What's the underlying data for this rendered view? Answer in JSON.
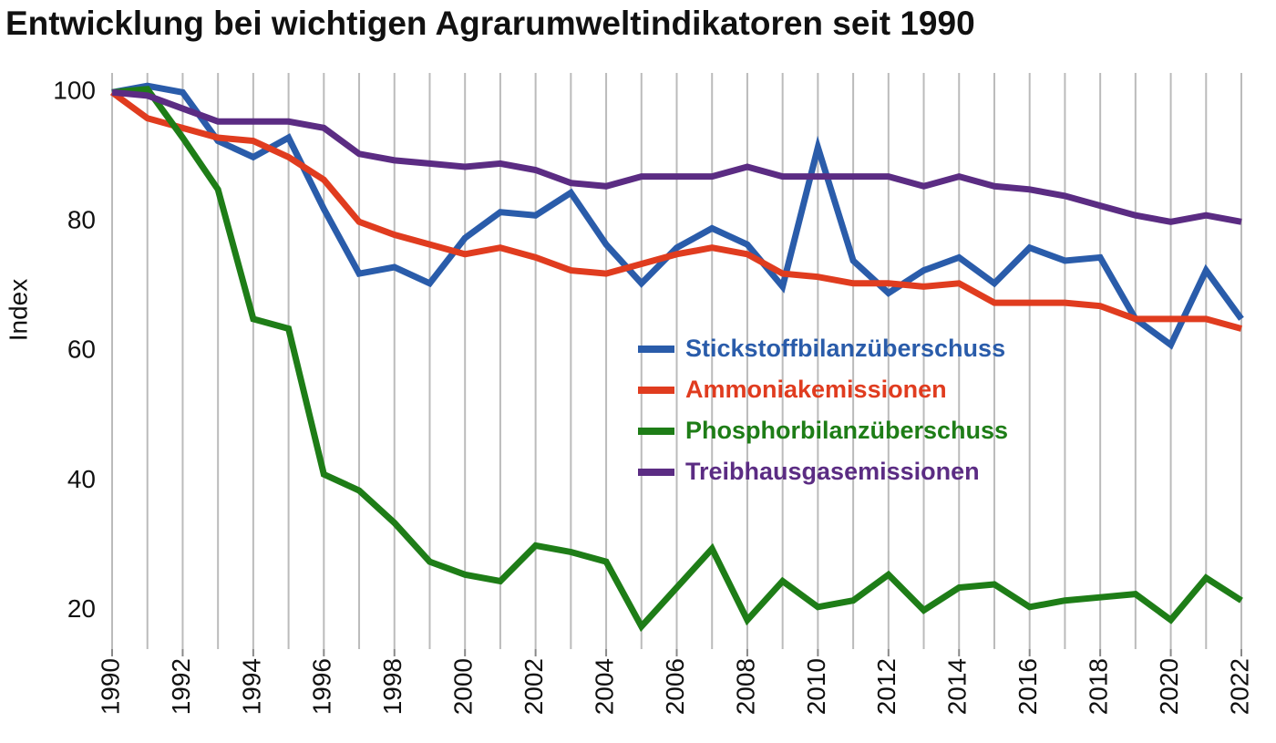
{
  "chart_data": {
    "type": "line",
    "title": "Entwicklung bei wichtigen Agrarumweltindikatoren seit 1990",
    "y_label": "Index",
    "x": [
      1990,
      1991,
      1992,
      1993,
      1994,
      1995,
      1996,
      1997,
      1998,
      1999,
      2000,
      2001,
      2002,
      2003,
      2004,
      2005,
      2006,
      2007,
      2008,
      2009,
      2010,
      2011,
      2012,
      2013,
      2014,
      2015,
      2016,
      2017,
      2018,
      2019,
      2020,
      2021,
      2022
    ],
    "xlim": [
      1990,
      2022
    ],
    "xticks": [
      1990,
      1992,
      1994,
      1996,
      1998,
      2000,
      2002,
      2004,
      2006,
      2008,
      2010,
      2012,
      2014,
      2016,
      2018,
      2020,
      2022
    ],
    "ylim": [
      14,
      103
    ],
    "yticks": [
      20,
      40,
      60,
      80,
      100
    ],
    "grid": true,
    "series": [
      {
        "name": "Stickstoffbilanzüberschuss",
        "color": "#2a5caa",
        "values": [
          100,
          101,
          100,
          92.5,
          90,
          93,
          82,
          72,
          73,
          70.5,
          77.5,
          81.5,
          81,
          84.5,
          76.5,
          70.5,
          76,
          79,
          76.5,
          70,
          91.5,
          74,
          69,
          72.5,
          74.5,
          70.5,
          76,
          74,
          74.5,
          65,
          61,
          72.5,
          65
        ]
      },
      {
        "name": "Ammoniakemissionen",
        "color": "#e03c1f",
        "values": [
          100,
          96,
          94.5,
          93,
          92.5,
          90,
          86.5,
          80,
          78,
          76.5,
          75,
          76,
          74.5,
          72.5,
          72,
          73.5,
          75,
          76,
          75,
          72,
          71.5,
          70.5,
          70.5,
          70,
          70.5,
          67.5,
          67.5,
          67.5,
          67,
          65,
          65,
          65,
          63.5
        ]
      },
      {
        "name": "Phosphorbilanzüberschuss",
        "color": "#1e7d17",
        "values": [
          100,
          100.5,
          93,
          85,
          65,
          63.5,
          41,
          38.5,
          33.5,
          27.5,
          25.5,
          24.5,
          30,
          29,
          27.5,
          17.5,
          23.5,
          29.5,
          18.5,
          24.5,
          20.5,
          21.5,
          25.5,
          20,
          23.5,
          24,
          20.5,
          21.5,
          22,
          22.5,
          18.5,
          25,
          21.5
        ]
      },
      {
        "name": "Treibhausgasemissionen",
        "color": "#5b2c83",
        "values": [
          100,
          99.5,
          97.5,
          95.5,
          95.5,
          95.5,
          94.5,
          90.5,
          89.5,
          89,
          88.5,
          89,
          88,
          86,
          85.5,
          87,
          87,
          87,
          88.5,
          87,
          87,
          87,
          87,
          85.5,
          87,
          85.5,
          85,
          84,
          82.5,
          81,
          80,
          81,
          80
        ]
      }
    ]
  }
}
